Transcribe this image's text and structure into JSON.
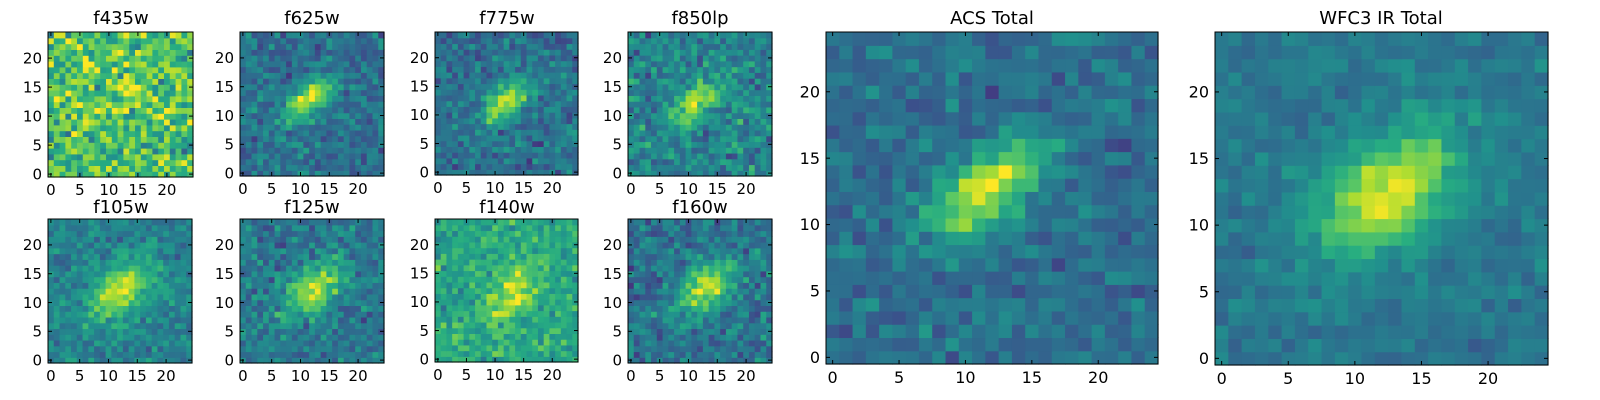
{
  "figure": {
    "colormap": "viridis",
    "colors": [
      "#440154",
      "#31688e",
      "#35b779",
      "#fde725"
    ]
  },
  "chart_data": [
    {
      "type": "heatmap",
      "title": "f435w",
      "grid_size": 25,
      "xlim": [
        0,
        24
      ],
      "ylim": [
        0,
        24
      ],
      "x_ticks": [
        "0",
        "5",
        "10",
        "15",
        "20"
      ],
      "y_ticks": [
        "0",
        "5",
        "10",
        "15",
        "20"
      ],
      "source": {
        "center": [
          12,
          13
        ],
        "amplitude": 0.12,
        "sigma": [
          4.0,
          2.0
        ],
        "angle_deg": -40,
        "background": 0.72,
        "noise": 0.22,
        "seed": 11
      }
    },
    {
      "type": "heatmap",
      "title": "f625w",
      "grid_size": 25,
      "xlim": [
        0,
        24
      ],
      "ylim": [
        0,
        24
      ],
      "x_ticks": [
        "0",
        "5",
        "10",
        "15",
        "20"
      ],
      "y_ticks": [
        "0",
        "5",
        "10",
        "15",
        "20"
      ],
      "source": {
        "center": [
          11.5,
          13
        ],
        "amplitude": 0.55,
        "sigma": [
          3.6,
          1.7
        ],
        "angle_deg": -40,
        "background": 0.38,
        "noise": 0.13,
        "seed": 23
      }
    },
    {
      "type": "heatmap",
      "title": "f775w",
      "grid_size": 25,
      "xlim": [
        0,
        24
      ],
      "ylim": [
        0,
        24
      ],
      "x_ticks": [
        "0",
        "5",
        "10",
        "15",
        "20"
      ],
      "y_ticks": [
        "0",
        "5",
        "10",
        "15",
        "20"
      ],
      "source": {
        "center": [
          12,
          12.5
        ],
        "amplitude": 0.55,
        "sigma": [
          3.6,
          1.7
        ],
        "angle_deg": -40,
        "background": 0.38,
        "noise": 0.13,
        "seed": 37
      }
    },
    {
      "type": "heatmap",
      "title": "f850lp",
      "grid_size": 25,
      "xlim": [
        0,
        24
      ],
      "ylim": [
        0,
        24
      ],
      "x_ticks": [
        "0",
        "5",
        "10",
        "15",
        "20"
      ],
      "y_ticks": [
        "0",
        "5",
        "10",
        "15",
        "20"
      ],
      "source": {
        "center": [
          11.5,
          12.5
        ],
        "amplitude": 0.45,
        "sigma": [
          3.6,
          1.8
        ],
        "angle_deg": -40,
        "background": 0.45,
        "noise": 0.16,
        "seed": 41
      }
    },
    {
      "type": "heatmap",
      "title": "f105w",
      "grid_size": 25,
      "xlim": [
        0,
        24
      ],
      "ylim": [
        0,
        24
      ],
      "x_ticks": [
        "0",
        "5",
        "10",
        "15",
        "20"
      ],
      "y_ticks": [
        "0",
        "5",
        "10",
        "15",
        "20"
      ],
      "source": {
        "center": [
          12,
          12
        ],
        "amplitude": 0.48,
        "sigma": [
          4.2,
          2.6
        ],
        "angle_deg": -40,
        "background": 0.45,
        "noise": 0.11,
        "seed": 53
      }
    },
    {
      "type": "heatmap",
      "title": "f125w",
      "grid_size": 25,
      "xlim": [
        0,
        24
      ],
      "ylim": [
        0,
        24
      ],
      "x_ticks": [
        "0",
        "5",
        "10",
        "15",
        "20"
      ],
      "y_ticks": [
        "0",
        "5",
        "10",
        "15",
        "20"
      ],
      "source": {
        "center": [
          12.5,
          12.5
        ],
        "amplitude": 0.5,
        "sigma": [
          4.2,
          2.4
        ],
        "angle_deg": -40,
        "background": 0.4,
        "noise": 0.13,
        "seed": 61
      }
    },
    {
      "type": "heatmap",
      "title": "f140w",
      "grid_size": 25,
      "xlim": [
        0,
        24
      ],
      "ylim": [
        0,
        24
      ],
      "x_ticks": [
        "0",
        "5",
        "10",
        "15",
        "20"
      ],
      "y_ticks": [
        "0",
        "5",
        "10",
        "15",
        "20"
      ],
      "source": {
        "center": [
          13,
          11.5
        ],
        "amplitude": 0.3,
        "sigma": [
          4.2,
          2.6
        ],
        "angle_deg": -40,
        "background": 0.6,
        "noise": 0.13,
        "seed": 71
      }
    },
    {
      "type": "heatmap",
      "title": "f160w",
      "grid_size": 25,
      "xlim": [
        0,
        24
      ],
      "ylim": [
        0,
        24
      ],
      "x_ticks": [
        "0",
        "5",
        "10",
        "15",
        "20"
      ],
      "y_ticks": [
        "0",
        "5",
        "10",
        "15",
        "20"
      ],
      "source": {
        "center": [
          13,
          12.5
        ],
        "amplitude": 0.55,
        "sigma": [
          4.0,
          2.5
        ],
        "angle_deg": -40,
        "background": 0.38,
        "noise": 0.14,
        "seed": 83
      }
    },
    {
      "type": "heatmap",
      "title": "ACS Total",
      "grid_size": 25,
      "xlim": [
        0,
        24
      ],
      "ylim": [
        0,
        24
      ],
      "x_ticks": [
        "0",
        "5",
        "10",
        "15",
        "20"
      ],
      "y_ticks": [
        "0",
        "5",
        "10",
        "15",
        "20"
      ],
      "source": {
        "center": [
          11.5,
          12.5
        ],
        "amplitude": 0.58,
        "sigma": [
          3.6,
          1.7
        ],
        "angle_deg": -40,
        "background": 0.37,
        "noise": 0.1,
        "seed": 97
      }
    },
    {
      "type": "heatmap",
      "title": "WFC3 IR Total",
      "grid_size": 25,
      "xlim": [
        0,
        24
      ],
      "ylim": [
        0,
        24
      ],
      "x_ticks": [
        "0",
        "5",
        "10",
        "15",
        "20"
      ],
      "y_ticks": [
        "0",
        "5",
        "10",
        "15",
        "20"
      ],
      "source": {
        "center": [
          12.5,
          12.5
        ],
        "amplitude": 0.56,
        "sigma": [
          4.2,
          2.6
        ],
        "angle_deg": -40,
        "background": 0.4,
        "noise": 0.07,
        "seed": 109
      }
    }
  ]
}
